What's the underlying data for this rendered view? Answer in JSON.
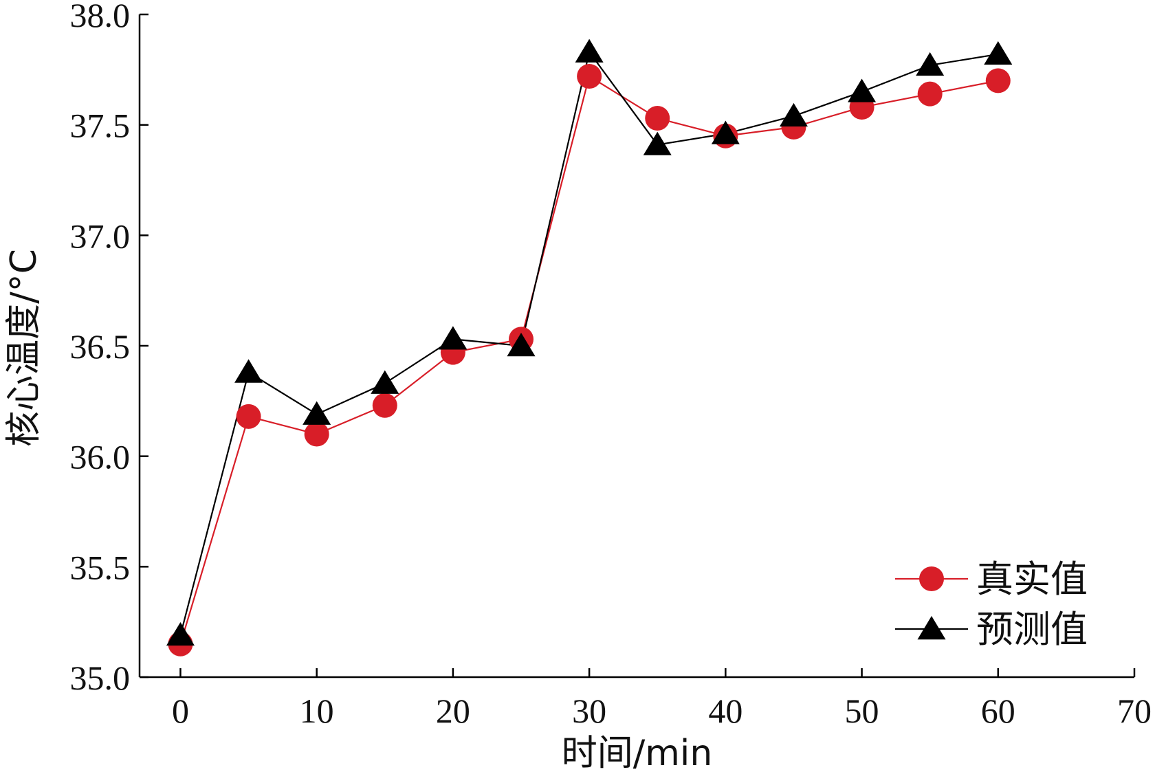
{
  "chart_data": {
    "type": "line",
    "xlabel": "时间/min",
    "ylabel": "核心温度/°C",
    "xlim": [
      -3,
      70
    ],
    "ylim": [
      35.0,
      38.0
    ],
    "xticks": [
      0,
      10,
      20,
      30,
      40,
      50,
      60,
      70
    ],
    "xtick_labels": [
      "0",
      "10",
      "20",
      "30",
      "40",
      "50",
      "60",
      "70"
    ],
    "yticks": [
      35.0,
      35.5,
      36.0,
      36.5,
      37.0,
      37.5,
      38.0
    ],
    "ytick_labels": [
      "35.0",
      "35.5",
      "36.0",
      "36.5",
      "37.0",
      "37.5",
      "38.0"
    ],
    "grid": false,
    "legend_position": "bottom-right",
    "x": [
      0,
      5,
      10,
      15,
      20,
      25,
      30,
      35,
      40,
      45,
      50,
      55,
      60
    ],
    "series": [
      {
        "name": "真实值",
        "color": "#d81e28",
        "marker": "circle",
        "values": [
          35.15,
          36.18,
          36.1,
          36.23,
          36.47,
          36.53,
          37.72,
          37.53,
          37.45,
          37.49,
          37.58,
          37.64,
          37.7
        ]
      },
      {
        "name": "预测值",
        "color": "#000000",
        "marker": "triangle",
        "values": [
          35.19,
          36.38,
          36.19,
          36.33,
          36.53,
          36.5,
          37.83,
          37.41,
          37.46,
          37.54,
          37.65,
          37.77,
          37.82
        ]
      }
    ]
  }
}
